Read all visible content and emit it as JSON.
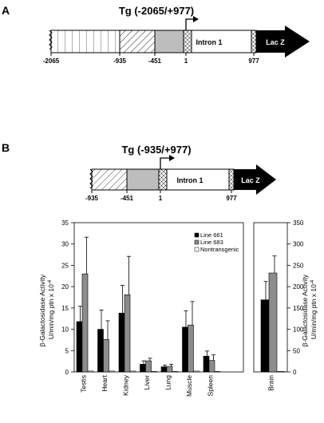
{
  "panels": {
    "a": {
      "letter": "A",
      "title": "Tg (-2065/+977)",
      "intron_label": "Intron 1",
      "reporter_label": "Lac Z",
      "ticks": [
        "-2065",
        "-935",
        "-451",
        "1",
        "977"
      ]
    },
    "b": {
      "letter": "B",
      "title": "Tg (-935/+977)",
      "intron_label": "Intron 1",
      "reporter_label": "Lac Z",
      "ticks": [
        "-935",
        "-451",
        "1",
        "977"
      ]
    }
  },
  "colors": {
    "line661": "#000000",
    "line683": "#8c8c8c",
    "nontransgenic": "#ffffff",
    "promoter_region": "#bdbdbd"
  },
  "chart_data": [
    {
      "type": "bar",
      "ylabel_line1": "β-Galactosidase Activity",
      "ylabel_line2": "U/min/mg ptn x 10",
      "ylabel_exp": "-4",
      "ylim": [
        0,
        35
      ],
      "yticks": [
        "0",
        "5",
        "10",
        "15",
        "20",
        "25",
        "30",
        "35"
      ],
      "categories": [
        "Testis",
        "Heart",
        "Kidney",
        "Liver",
        "Lung",
        "Muscle",
        "Spleen"
      ],
      "legend_position": "top-right",
      "series": [
        {
          "name": "Line 661",
          "values": [
            11.8,
            10.0,
            13.8,
            1.8,
            1.2,
            10.5,
            3.7
          ],
          "errors": [
            3.6,
            4.5,
            6.5,
            0.8,
            0.4,
            3.8,
            1.2
          ]
        },
        {
          "name": "Line 683",
          "values": [
            23.0,
            7.6,
            18.1,
            2.6,
            1.3,
            11.0,
            2.7
          ],
          "errors": [
            8.6,
            4.4,
            9.0,
            0.6,
            0.5,
            5.5,
            1.3
          ]
        },
        {
          "name": "Nontransgenic",
          "values": [
            0.2,
            0.2,
            0.2,
            0.1,
            0.1,
            0.2,
            0.1
          ],
          "errors": [
            0,
            0,
            0,
            0,
            0,
            0,
            0
          ]
        }
      ]
    },
    {
      "type": "bar",
      "ylim": [
        0,
        350
      ],
      "yticks": [
        "0",
        "50",
        "100",
        "150",
        "200",
        "250",
        "300",
        "350"
      ],
      "categories": [
        "Brain"
      ],
      "series": [
        {
          "name": "Line 661",
          "values": [
            169
          ],
          "errors": [
            43
          ]
        },
        {
          "name": "Line 683",
          "values": [
            232
          ],
          "errors": [
            40
          ]
        },
        {
          "name": "Nontransgenic",
          "values": [
            1
          ],
          "errors": [
            0
          ]
        }
      ]
    }
  ]
}
